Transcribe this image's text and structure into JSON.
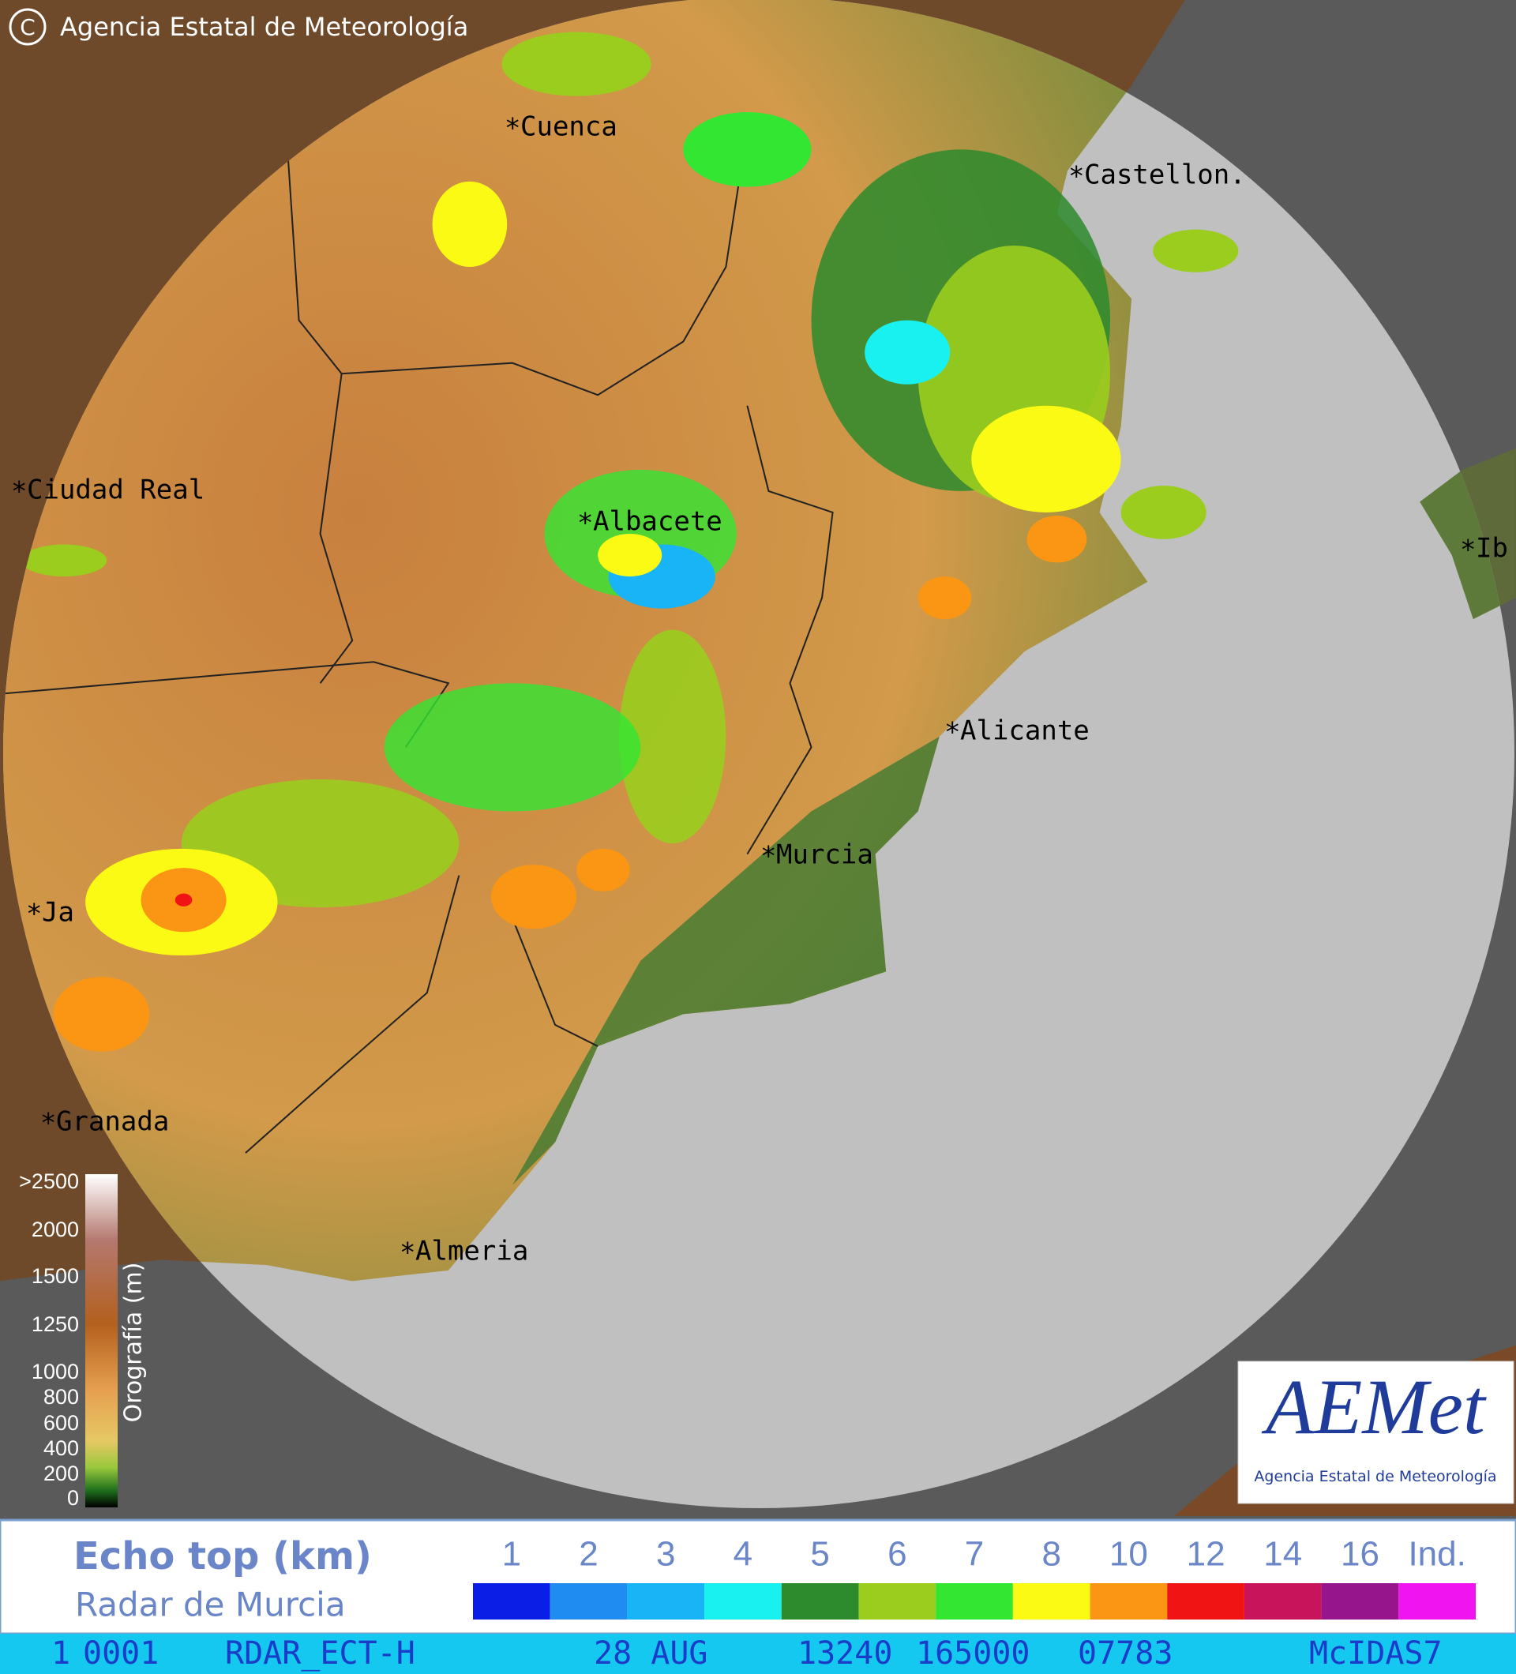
{
  "header": {
    "copyright": "Agencia Estatal de Meteorología"
  },
  "cities": [
    {
      "label": "Cuenca"
    },
    {
      "label": "Castellon."
    },
    {
      "label": "Ciudad Real"
    },
    {
      "label": "Albacete"
    },
    {
      "label": "Alicante"
    },
    {
      "label": "Murcia"
    },
    {
      "label": "Ja"
    },
    {
      "label": "Granada"
    },
    {
      "label": "Almeria"
    },
    {
      "label": "Ib"
    }
  ],
  "orography": {
    "title": "Orografía (m)",
    "labels": [
      ">2500",
      "2000",
      "1500",
      "1250",
      "1000",
      "800",
      "600",
      "400",
      "200",
      "0"
    ]
  },
  "echo_legend": {
    "title": "Echo top (km)",
    "subtitle": "Radar de Murcia",
    "labels": [
      "1",
      "2",
      "3",
      "4",
      "5",
      "6",
      "7",
      "8",
      "10",
      "12",
      "14",
      "16",
      "Ind."
    ],
    "colors": [
      "#0a1ee6",
      "#1e8cf0",
      "#19b4f5",
      "#19f0f0",
      "#2d8a2d",
      "#9acd1e",
      "#32e632",
      "#fafa14",
      "#fa9614",
      "#f01414",
      "#c8145a",
      "#96148c",
      "#f014f0"
    ]
  },
  "logo": {
    "name": "AEMet",
    "caption": "Agencia Estatal de Meteorología"
  },
  "status_bar": {
    "fields": [
      "1",
      "0001",
      "RDAR_ECT-H",
      "28 AUG",
      "13240",
      "165000",
      "07783",
      "McIDAS7"
    ]
  }
}
